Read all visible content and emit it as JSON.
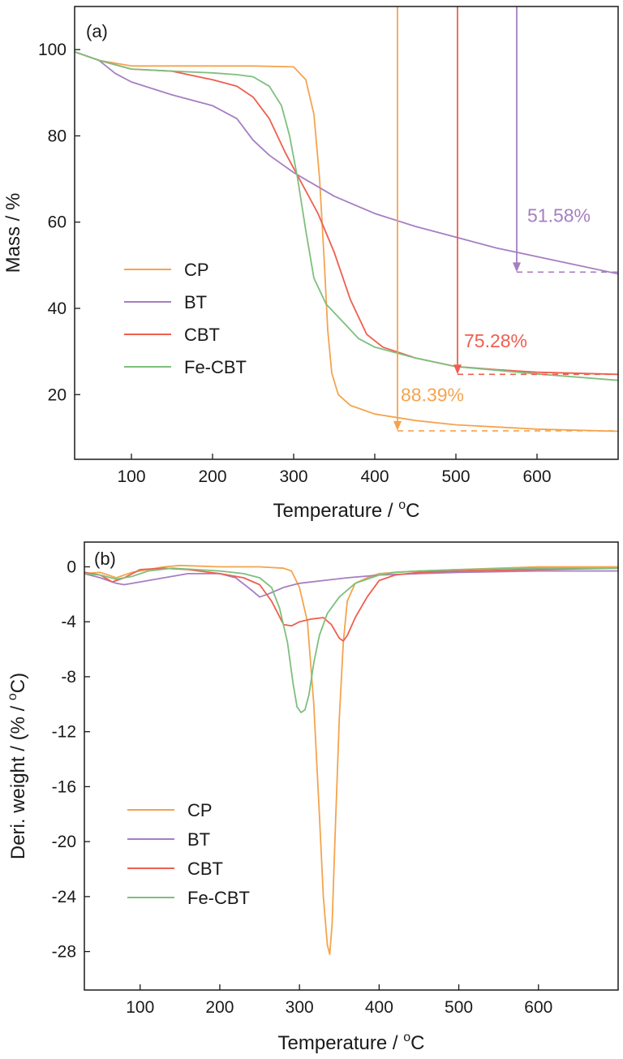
{
  "chart_data": [
    {
      "type": "line",
      "panel_label": "(a)",
      "xlabel": "Temperature / ",
      "xlabel_sup": "o",
      "xlabel_suffix": "C",
      "ylabel": "Mass / %",
      "xlim": [
        30,
        700
      ],
      "ylim": [
        5,
        110
      ],
      "xticks": [
        100,
        200,
        300,
        400,
        500,
        600
      ],
      "yticks": [
        20,
        40,
        60,
        80,
        100
      ],
      "legend_position": "bottom-left",
      "series": [
        {
          "name": "CP",
          "color": "#f4a44e",
          "x": [
            30,
            60,
            100,
            150,
            200,
            250,
            300,
            315,
            325,
            332,
            338,
            342,
            347,
            355,
            370,
            400,
            450,
            500,
            600,
            700
          ],
          "y": [
            99.5,
            97.5,
            96.2,
            96.2,
            96.2,
            96.2,
            96,
            93,
            85,
            70,
            50,
            35,
            25,
            20,
            17.5,
            15.5,
            14,
            13,
            12,
            11.5
          ]
        },
        {
          "name": "BT",
          "color": "#a67fc2",
          "x": [
            30,
            60,
            80,
            100,
            150,
            200,
            230,
            250,
            270,
            300,
            350,
            400,
            450,
            500,
            550,
            600,
            650,
            700
          ],
          "y": [
            99.5,
            97.5,
            94.5,
            92.5,
            89.5,
            87,
            84,
            79,
            75.5,
            71.5,
            66,
            62,
            59,
            56.5,
            54,
            52,
            50,
            48
          ]
        },
        {
          "name": "CBT",
          "color": "#ee5f50",
          "x": [
            30,
            60,
            100,
            150,
            200,
            230,
            250,
            270,
            290,
            310,
            330,
            350,
            370,
            390,
            410,
            450,
            500,
            550,
            600,
            700
          ],
          "y": [
            99.5,
            97.5,
            95.5,
            95,
            93,
            91.5,
            89,
            84,
            76,
            69,
            62,
            53,
            42,
            34,
            31,
            28.5,
            26.5,
            25.8,
            25.2,
            24.7
          ]
        },
        {
          "name": "Fe-CBT",
          "color": "#7ebf7e",
          "x": [
            30,
            60,
            100,
            150,
            200,
            230,
            250,
            270,
            285,
            295,
            305,
            315,
            325,
            340,
            360,
            380,
            400,
            450,
            500,
            600,
            700
          ],
          "y": [
            99.5,
            97.5,
            95.5,
            95,
            94.6,
            94.2,
            93.7,
            91.5,
            87,
            80,
            70,
            58,
            47,
            41,
            37,
            33,
            31,
            28.5,
            26.5,
            24.8,
            23.3
          ]
        }
      ],
      "annotations": [
        {
          "text": "88.39%",
          "color": "#f4a44e",
          "arrow_x": 428,
          "arrow_y_end": 11.6,
          "x": 432,
          "y": 18.5
        },
        {
          "text": "75.28%",
          "color": "#ee5f50",
          "arrow_x": 502,
          "arrow_y_end": 24.7,
          "x": 510,
          "y": 31
        },
        {
          "text": "51.58%",
          "color": "#a67fc2",
          "arrow_x": 575,
          "arrow_y_end": 48.4,
          "x": 588,
          "y": 60
        }
      ]
    },
    {
      "type": "line",
      "panel_label": "(b)",
      "xlabel": "Temperature / ",
      "xlabel_sup": "o",
      "xlabel_suffix": "C",
      "ylabel": "Deri. weight / (% / ",
      "ylabel_sup": "o",
      "ylabel_suffix": "C)",
      "xlim": [
        30,
        700
      ],
      "ylim": [
        -30.8,
        1.8
      ],
      "xticks": [
        100,
        200,
        300,
        400,
        500,
        600
      ],
      "yticks": [
        0,
        -4,
        -8,
        -12,
        -16,
        -20,
        -24,
        -28
      ],
      "legend_position": "bottom-left",
      "series": [
        {
          "name": "CP",
          "color": "#f4a44e",
          "x": [
            30,
            50,
            70,
            90,
            110,
            130,
            150,
            200,
            250,
            280,
            290,
            300,
            310,
            318,
            325,
            330,
            335,
            338,
            341,
            345,
            350,
            355,
            360,
            370,
            385,
            400,
            420,
            450,
            500,
            600,
            700
          ],
          "y": [
            -0.5,
            -0.4,
            -0.8,
            -0.4,
            -0.2,
            0,
            0.1,
            0,
            0,
            -0.1,
            -0.3,
            -1.5,
            -4,
            -10,
            -18,
            -24,
            -27.5,
            -28.2,
            -26,
            -19,
            -11,
            -5.5,
            -2.5,
            -1.2,
            -0.8,
            -0.5,
            -0.4,
            -0.3,
            -0.2,
            0,
            0
          ]
        },
        {
          "name": "BT",
          "color": "#a67fc2",
          "x": [
            30,
            50,
            70,
            80,
            100,
            130,
            160,
            200,
            220,
            240,
            250,
            260,
            280,
            300,
            330,
            360,
            400,
            450,
            500,
            600,
            700
          ],
          "y": [
            -0.5,
            -0.8,
            -1.2,
            -1.3,
            -1.1,
            -0.8,
            -0.5,
            -0.5,
            -0.8,
            -1.7,
            -2.2,
            -2,
            -1.5,
            -1.2,
            -1,
            -0.8,
            -0.6,
            -0.5,
            -0.4,
            -0.3,
            -0.3
          ]
        },
        {
          "name": "CBT",
          "color": "#ee5f50",
          "x": [
            30,
            50,
            65,
            80,
            100,
            130,
            160,
            200,
            230,
            250,
            265,
            280,
            290,
            300,
            315,
            330,
            340,
            350,
            355,
            360,
            370,
            385,
            400,
            420,
            450,
            500,
            600,
            700
          ],
          "y": [
            -0.4,
            -0.6,
            -1.1,
            -0.8,
            -0.2,
            -0.1,
            -0.2,
            -0.5,
            -0.8,
            -1.3,
            -2.5,
            -4.2,
            -4.3,
            -4,
            -3.8,
            -3.7,
            -4.2,
            -5.2,
            -5.4,
            -5,
            -3.7,
            -2.2,
            -1,
            -0.6,
            -0.4,
            -0.3,
            -0.2,
            -0.1
          ]
        },
        {
          "name": "Fe-CBT",
          "color": "#7ebf7e",
          "x": [
            30,
            50,
            70,
            90,
            110,
            140,
            170,
            200,
            230,
            250,
            265,
            275,
            285,
            292,
            297,
            302,
            307,
            312,
            318,
            325,
            335,
            350,
            370,
            400,
            420,
            450,
            500,
            600,
            700
          ],
          "y": [
            -0.5,
            -0.6,
            -0.9,
            -0.7,
            -0.3,
            -0.1,
            -0.2,
            -0.3,
            -0.5,
            -0.8,
            -1.5,
            -3,
            -5.5,
            -8.5,
            -10.2,
            -10.6,
            -10.4,
            -9.3,
            -7,
            -5,
            -3.4,
            -2.2,
            -1.2,
            -0.6,
            -0.4,
            -0.3,
            -0.2,
            -0.1,
            -0.1
          ]
        }
      ]
    }
  ]
}
